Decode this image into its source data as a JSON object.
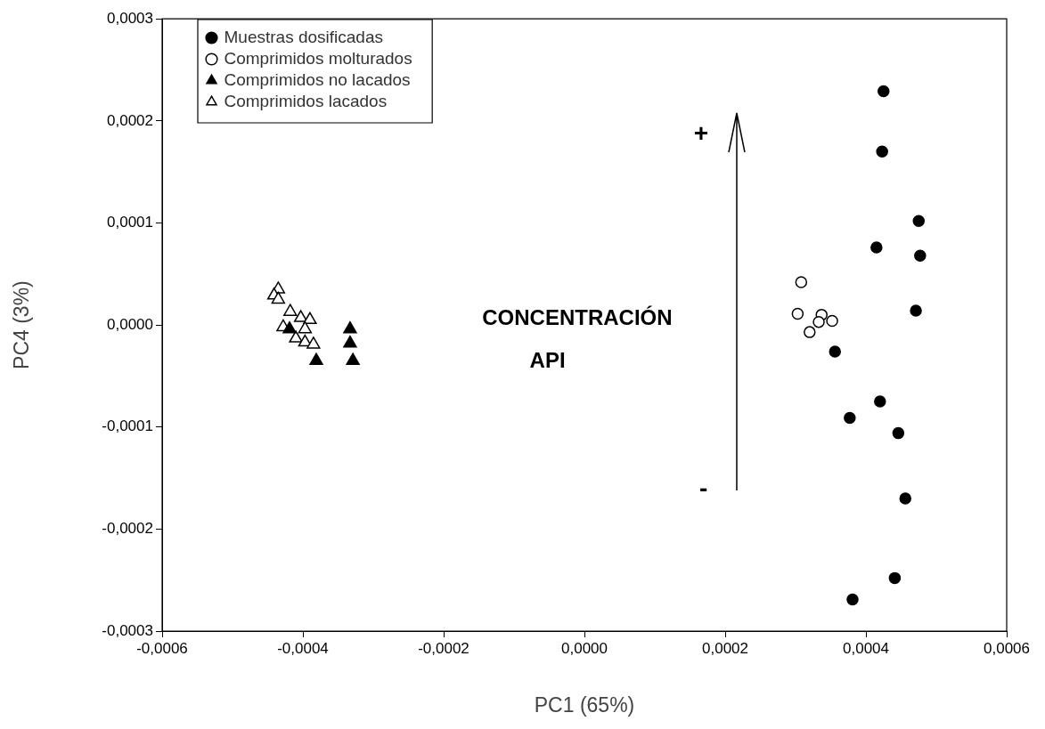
{
  "chart_data": {
    "type": "scatter",
    "xlabel": "PC1 (65%)",
    "ylabel": "PC4 (3%)",
    "xlim": [
      -0.0006,
      0.0006
    ],
    "ylim": [
      -0.0003,
      0.0003
    ],
    "xticks": [
      {
        "value": -0.0006,
        "label": "-0,0006"
      },
      {
        "value": -0.0004,
        "label": "-0,0004"
      },
      {
        "value": -0.0002,
        "label": "-0,0002"
      },
      {
        "value": 0,
        "label": "0,0000"
      },
      {
        "value": 0.0002,
        "label": "0,0002"
      },
      {
        "value": 0.0004,
        "label": "0,0004"
      },
      {
        "value": 0.0006,
        "label": "0,0006"
      }
    ],
    "yticks": [
      {
        "value": -0.0003,
        "label": "-0,0003"
      },
      {
        "value": -0.0002,
        "label": "-0,0002"
      },
      {
        "value": -0.0001,
        "label": "-0,0001"
      },
      {
        "value": 0,
        "label": "0,0000"
      },
      {
        "value": 0.0001,
        "label": "0,0001"
      },
      {
        "value": 0.0002,
        "label": "0,0002"
      },
      {
        "value": 0.0003,
        "label": "0,0003"
      }
    ],
    "legend": "top left",
    "annotations": [
      "CONCENTRACIÓN API",
      "+",
      "-"
    ],
    "series": [
      {
        "name": "Muestras dosificadas",
        "color": "#000000",
        "marker": "circle",
        "x": [
          0.000425,
          0.000423,
          0.000475,
          0.000415,
          0.000477,
          0.000471,
          0.000356,
          0.000377,
          0.00042,
          0.000446,
          0.000456,
          0.000441,
          0.000381
        ],
        "values": [
          0.000229,
          0.00017,
          0.000102,
          7.6e-05,
          6.8e-05,
          1.4e-05,
          -2.6e-05,
          -9.1e-05,
          -7.5e-05,
          -0.000106,
          -0.00017,
          -0.000248,
          -0.000269
        ]
      },
      {
        "name": "Comprimidos molturados",
        "color": "#ffffff",
        "marker": "circle",
        "x": [
          0.000308,
          0.000303,
          0.000337,
          0.000333,
          0.000352,
          0.00032
        ],
        "values": [
          4.2e-05,
          1.1e-05,
          1e-05,
          3e-06,
          4e-06,
          -7e-06
        ]
      },
      {
        "name": "Comprimidos no lacados",
        "color": "#000000",
        "marker": "triangle",
        "x": [
          -0.000419,
          -0.000333,
          -0.000333,
          -0.000329,
          -0.000381
        ],
        "values": [
          -4e-06,
          -4e-06,
          -1.8e-05,
          -3.5e-05,
          -3.5e-05
        ]
      },
      {
        "name": "Comprimidos lacados",
        "color": "#ffffff",
        "marker": "triangle",
        "x": [
          -0.000435,
          -0.000441,
          -0.000435,
          -0.000418,
          -0.000403,
          -0.00039,
          -0.000428,
          -0.000397,
          -0.00041,
          -0.000397,
          -0.000385
        ],
        "values": [
          3.5e-05,
          2.9e-05,
          2.5e-05,
          1.3e-05,
          7e-06,
          5e-06,
          -2e-06,
          -4e-06,
          -1.3e-05,
          -1.7e-05,
          -1.9e-05
        ]
      }
    ]
  }
}
